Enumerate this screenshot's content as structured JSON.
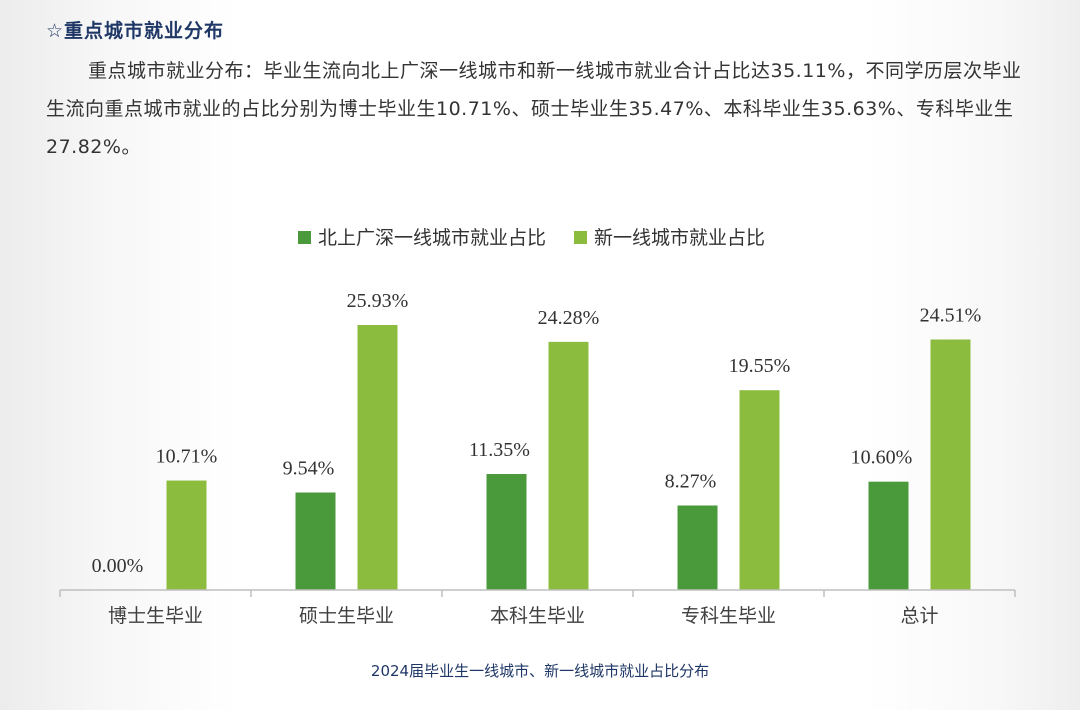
{
  "section": {
    "title": "☆重点城市就业分布"
  },
  "paragraph": "重点城市就业分布：毕业生流向北上广深一线城市和新一线城市就业合计占比达35.11%，不同学历层次毕业生流向重点城市就业的占比分别为博士毕业生10.71%、硕士毕业生35.47%、本科毕业生35.63%、专科毕业生27.82%。",
  "caption": "2024届毕业生一线城市、新一线城市就业占比分布",
  "colors": {
    "series1": "#4a9a3b",
    "series2": "#8cbc3e"
  },
  "chart_data": {
    "type": "bar",
    "title": "",
    "xlabel": "",
    "ylabel": "",
    "ylim": [
      0,
      30
    ],
    "grid": false,
    "legend": "top",
    "categories": [
      "博士生毕业",
      "硕士生毕业",
      "本科生毕业",
      "专科生毕业",
      "总计"
    ],
    "series": [
      {
        "name": "北上广深一线城市就业占比",
        "values": [
          0.0,
          9.54,
          11.35,
          8.27,
          10.6
        ],
        "labels": [
          "0.00%",
          "9.54%",
          "11.35%",
          "8.27%",
          "10.60%"
        ]
      },
      {
        "name": "新一线城市就业占比",
        "values": [
          10.71,
          25.93,
          24.28,
          19.55,
          24.51
        ],
        "labels": [
          "10.71%",
          "25.93%",
          "24.28%",
          "19.55%",
          "24.51%"
        ]
      }
    ]
  }
}
